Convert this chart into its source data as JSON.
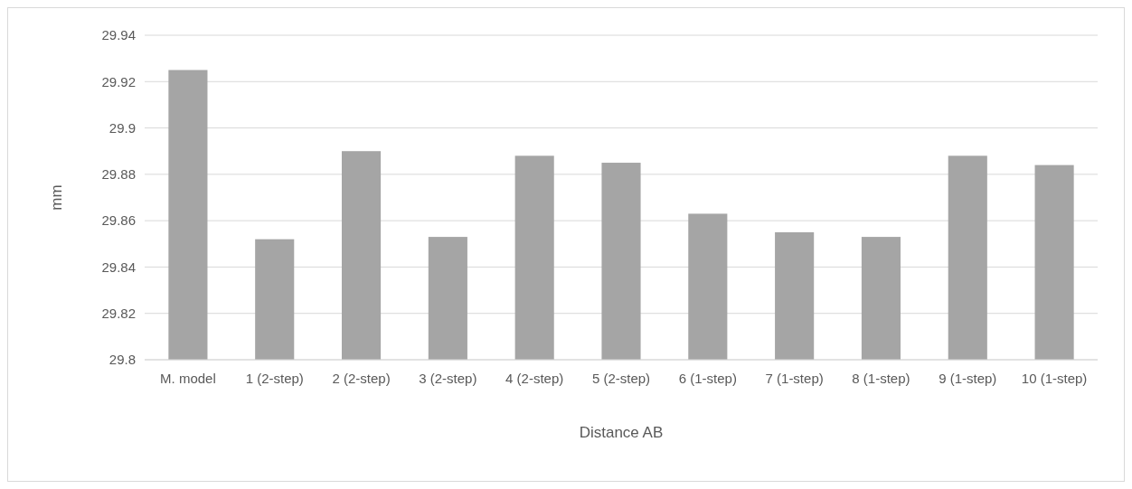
{
  "chart_data": {
    "type": "bar",
    "xlabel": "Distance AB",
    "ylabel": "mm",
    "categories": [
      "M. model",
      "1 (2-step)",
      "2 (2-step)",
      "3 (2-step)",
      "4 (2-step)",
      "5 (2-step)",
      "6 (1-step)",
      "7 (1-step)",
      "8 (1-step)",
      "9 (1-step)",
      "10 (1-step)"
    ],
    "values": [
      29.925,
      29.852,
      29.89,
      29.853,
      29.888,
      29.885,
      29.863,
      29.855,
      29.853,
      29.888,
      29.884
    ],
    "color": "#a5a5a5",
    "ylim": [
      29.8,
      29.94
    ],
    "yticks": [
      29.8,
      29.82,
      29.84,
      29.86,
      29.88,
      29.9,
      29.92,
      29.94
    ],
    "grid": "y"
  }
}
